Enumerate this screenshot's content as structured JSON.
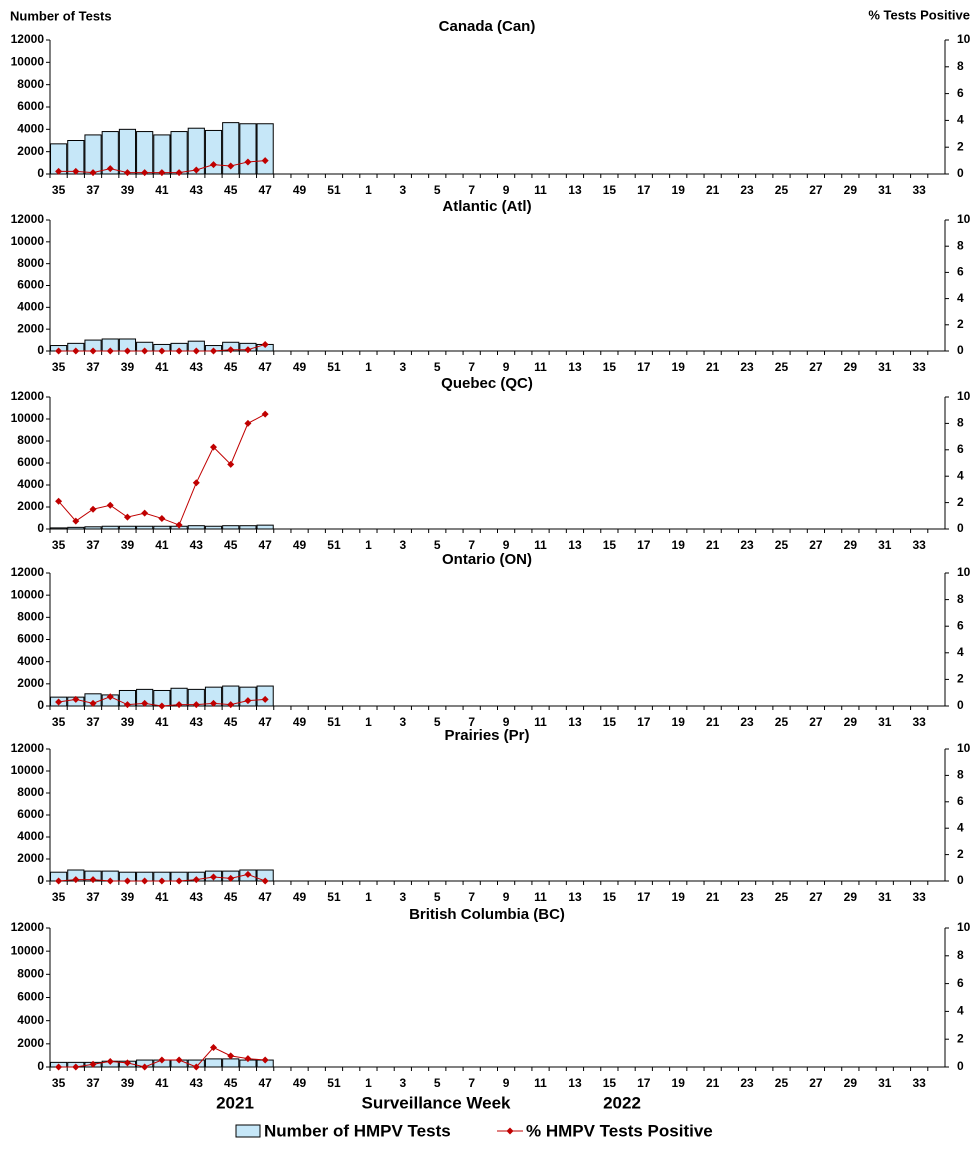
{
  "chart_data": [
    {
      "type": "bar_line",
      "title": "Canada (Can)",
      "ylabel": "Number of Tests",
      "y2label": "% Tests Positive",
      "categories": [
        35,
        null,
        37,
        null,
        39,
        null,
        41,
        null,
        43,
        null,
        45,
        null,
        47,
        null,
        49,
        null,
        51,
        null,
        1,
        null,
        3,
        null,
        5,
        null,
        7,
        null,
        9,
        null,
        11,
        null,
        13,
        null,
        15,
        null,
        17,
        null,
        19,
        null,
        21,
        null,
        23,
        null,
        25,
        null,
        27,
        null,
        29,
        null,
        31,
        null,
        33,
        null
      ],
      "ylim": [
        0,
        12000
      ],
      "yticks": [
        0,
        2000,
        4000,
        6000,
        8000,
        10000,
        12000
      ],
      "y2lim": [
        0,
        10
      ],
      "y2ticks": [
        0,
        2,
        4,
        6,
        8,
        10
      ],
      "series": [
        {
          "color": "#c6e7f8",
          "values": [
            2700,
            3000,
            3500,
            3800,
            4000,
            3800,
            3500,
            3800,
            4100,
            3900,
            4600,
            4500,
            4500,
            null,
            null,
            null,
            null,
            null,
            null,
            null,
            null,
            null,
            null,
            null,
            null,
            null,
            null,
            null,
            null,
            null,
            null,
            null,
            null,
            null,
            null,
            null,
            null,
            null,
            null,
            null,
            null,
            null,
            null,
            null,
            null,
            null,
            null,
            null,
            null,
            null,
            null,
            null
          ]
        },
        {
          "color": "#c00000",
          "axis": "y2",
          "values": [
            0.2,
            0.2,
            0.1,
            0.4,
            0.1,
            0.1,
            0.1,
            0.1,
            0.3,
            0.7,
            0.6,
            0.9,
            1.0,
            null,
            null,
            null,
            null,
            null,
            null,
            null,
            null,
            null,
            null,
            null,
            null,
            null,
            null,
            null,
            null,
            null,
            null,
            null,
            null,
            null,
            null,
            null,
            null,
            null,
            null,
            null,
            null,
            null,
            null,
            null,
            null,
            null,
            null,
            null,
            null,
            null,
            null,
            null
          ]
        }
      ]
    },
    {
      "type": "bar_line",
      "title": "Atlantic (Atl)",
      "categories": [
        35,
        null,
        37,
        null,
        39,
        null,
        41,
        null,
        43,
        null,
        45,
        null,
        47,
        null,
        49,
        null,
        51,
        null,
        1,
        null,
        3,
        null,
        5,
        null,
        7,
        null,
        9,
        null,
        11,
        null,
        13,
        null,
        15,
        null,
        17,
        null,
        19,
        null,
        21,
        null,
        23,
        null,
        25,
        null,
        27,
        null,
        29,
        null,
        31,
        null,
        33,
        null
      ],
      "ylim": [
        0,
        12000
      ],
      "yticks": [
        0,
        2000,
        4000,
        6000,
        8000,
        10000,
        12000
      ],
      "y2lim": [
        0,
        10
      ],
      "y2ticks": [
        0,
        2,
        4,
        6,
        8,
        10
      ],
      "series": [
        {
          "color": "#c6e7f8",
          "values": [
            500,
            700,
            1000,
            1100,
            1100,
            800,
            600,
            700,
            900,
            500,
            800,
            700,
            600,
            null,
            null,
            null,
            null,
            null,
            null,
            null,
            null,
            null,
            null,
            null,
            null,
            null,
            null,
            null,
            null,
            null,
            null,
            null,
            null,
            null,
            null,
            null,
            null,
            null,
            null,
            null,
            null,
            null,
            null,
            null,
            null,
            null,
            null,
            null,
            null,
            null,
            null,
            null
          ]
        },
        {
          "color": "#c00000",
          "axis": "y2",
          "values": [
            0,
            0,
            0,
            0,
            0,
            0,
            0,
            0,
            0,
            0,
            0.1,
            0.1,
            0.5,
            null,
            null,
            null,
            null,
            null,
            null,
            null,
            null,
            null,
            null,
            null,
            null,
            null,
            null,
            null,
            null,
            null,
            null,
            null,
            null,
            null,
            null,
            null,
            null,
            null,
            null,
            null,
            null,
            null,
            null,
            null,
            null,
            null,
            null,
            null,
            null,
            null,
            null,
            null
          ]
        }
      ]
    },
    {
      "type": "bar_line",
      "title": "Quebec (QC)",
      "categories": [
        35,
        null,
        37,
        null,
        39,
        null,
        41,
        null,
        43,
        null,
        45,
        null,
        47,
        null,
        49,
        null,
        51,
        null,
        1,
        null,
        3,
        null,
        5,
        null,
        7,
        null,
        9,
        null,
        11,
        null,
        13,
        null,
        15,
        null,
        17,
        null,
        19,
        null,
        21,
        null,
        23,
        null,
        25,
        null,
        27,
        null,
        29,
        null,
        31,
        null,
        33,
        null
      ],
      "ylim": [
        0,
        12000
      ],
      "yticks": [
        0,
        2000,
        4000,
        6000,
        8000,
        10000,
        12000
      ],
      "y2lim": [
        0,
        10
      ],
      "y2ticks": [
        0,
        2,
        4,
        6,
        8,
        10
      ],
      "series": [
        {
          "color": "#c6e7f8",
          "values": [
            100,
            150,
            200,
            250,
            250,
            250,
            250,
            250,
            300,
            250,
            300,
            300,
            350,
            null,
            null,
            null,
            null,
            null,
            null,
            null,
            null,
            null,
            null,
            null,
            null,
            null,
            null,
            null,
            null,
            null,
            null,
            null,
            null,
            null,
            null,
            null,
            null,
            null,
            null,
            null,
            null,
            null,
            null,
            null,
            null,
            null,
            null,
            null,
            null,
            null,
            null,
            null
          ]
        },
        {
          "color": "#c00000",
          "axis": "y2",
          "values": [
            2.1,
            0.6,
            1.5,
            1.8,
            0.9,
            1.2,
            0.8,
            0.3,
            3.5,
            6.2,
            4.9,
            8.0,
            8.7,
            null,
            null,
            null,
            null,
            null,
            null,
            null,
            null,
            null,
            null,
            null,
            null,
            null,
            null,
            null,
            null,
            null,
            null,
            null,
            null,
            null,
            null,
            null,
            null,
            null,
            null,
            null,
            null,
            null,
            null,
            null,
            null,
            null,
            null,
            null,
            null,
            null,
            null,
            null
          ]
        }
      ]
    },
    {
      "type": "bar_line",
      "title": "Ontario (ON)",
      "categories": [
        35,
        null,
        37,
        null,
        39,
        null,
        41,
        null,
        43,
        null,
        45,
        null,
        47,
        null,
        49,
        null,
        51,
        null,
        1,
        null,
        3,
        null,
        5,
        null,
        7,
        null,
        9,
        null,
        11,
        null,
        13,
        null,
        15,
        null,
        17,
        null,
        19,
        null,
        21,
        null,
        23,
        null,
        25,
        null,
        27,
        null,
        29,
        null,
        31,
        null,
        33,
        null
      ],
      "ylim": [
        0,
        12000
      ],
      "yticks": [
        0,
        2000,
        4000,
        6000,
        8000,
        10000,
        12000
      ],
      "y2lim": [
        0,
        10
      ],
      "y2ticks": [
        0,
        2,
        4,
        6,
        8,
        10
      ],
      "series": [
        {
          "color": "#c6e7f8",
          "values": [
            800,
            800,
            1100,
            1000,
            1400,
            1500,
            1400,
            1600,
            1500,
            1700,
            1800,
            1700,
            1800,
            null,
            null,
            null,
            null,
            null,
            null,
            null,
            null,
            null,
            null,
            null,
            null,
            null,
            null,
            null,
            null,
            null,
            null,
            null,
            null,
            null,
            null,
            null,
            null,
            null,
            null,
            null,
            null,
            null,
            null,
            null,
            null,
            null,
            null,
            null,
            null,
            null,
            null,
            null
          ]
        },
        {
          "color": "#c00000",
          "axis": "y2",
          "values": [
            0.3,
            0.5,
            0.2,
            0.7,
            0.1,
            0.2,
            0,
            0.1,
            0.1,
            0.2,
            0.1,
            0.4,
            0.5,
            null,
            null,
            null,
            null,
            null,
            null,
            null,
            null,
            null,
            null,
            null,
            null,
            null,
            null,
            null,
            null,
            null,
            null,
            null,
            null,
            null,
            null,
            null,
            null,
            null,
            null,
            null,
            null,
            null,
            null,
            null,
            null,
            null,
            null,
            null,
            null,
            null,
            null,
            null
          ]
        }
      ]
    },
    {
      "type": "bar_line",
      "title": "Prairies (Pr)",
      "categories": [
        35,
        null,
        37,
        null,
        39,
        null,
        41,
        null,
        43,
        null,
        45,
        null,
        47,
        null,
        49,
        null,
        51,
        null,
        1,
        null,
        3,
        null,
        5,
        null,
        7,
        null,
        9,
        null,
        11,
        null,
        13,
        null,
        15,
        null,
        17,
        null,
        19,
        null,
        21,
        null,
        23,
        null,
        25,
        null,
        27,
        null,
        29,
        null,
        31,
        null,
        33,
        null
      ],
      "ylim": [
        0,
        12000
      ],
      "yticks": [
        0,
        2000,
        4000,
        6000,
        8000,
        10000,
        12000
      ],
      "y2lim": [
        0,
        10
      ],
      "y2ticks": [
        0,
        2,
        4,
        6,
        8,
        10
      ],
      "series": [
        {
          "color": "#c6e7f8",
          "values": [
            800,
            1000,
            900,
            900,
            800,
            800,
            800,
            800,
            800,
            900,
            900,
            1000,
            1000,
            null,
            null,
            null,
            null,
            null,
            null,
            null,
            null,
            null,
            null,
            null,
            null,
            null,
            null,
            null,
            null,
            null,
            null,
            null,
            null,
            null,
            null,
            null,
            null,
            null,
            null,
            null,
            null,
            null,
            null,
            null,
            null,
            null,
            null,
            null,
            null,
            null,
            null,
            null
          ]
        },
        {
          "color": "#c00000",
          "axis": "y2",
          "values": [
            0,
            0.1,
            0.1,
            0,
            0,
            0,
            0,
            0,
            0.1,
            0.3,
            0.2,
            0.5,
            0,
            null,
            null,
            null,
            null,
            null,
            null,
            null,
            null,
            null,
            null,
            null,
            null,
            null,
            null,
            null,
            null,
            null,
            null,
            null,
            null,
            null,
            null,
            null,
            null,
            null,
            null,
            null,
            null,
            null,
            null,
            null,
            null,
            null,
            null,
            null,
            null,
            null,
            null,
            null
          ]
        }
      ]
    },
    {
      "type": "bar_line",
      "title": "British Columbia (BC)",
      "xlabel": "Surveillance Week",
      "annotations": [
        "2021",
        "2022"
      ],
      "categories": [
        35,
        null,
        37,
        null,
        39,
        null,
        41,
        null,
        43,
        null,
        45,
        null,
        47,
        null,
        49,
        null,
        51,
        null,
        1,
        null,
        3,
        null,
        5,
        null,
        7,
        null,
        9,
        null,
        11,
        null,
        13,
        null,
        15,
        null,
        17,
        null,
        19,
        null,
        21,
        null,
        23,
        null,
        25,
        null,
        27,
        null,
        29,
        null,
        31,
        null,
        33,
        null
      ],
      "ylim": [
        0,
        12000
      ],
      "yticks": [
        0,
        2000,
        4000,
        6000,
        8000,
        10000,
        12000
      ],
      "y2lim": [
        0,
        10
      ],
      "y2ticks": [
        0,
        2,
        4,
        6,
        8,
        10
      ],
      "series": [
        {
          "name": "Number of HMPV Tests",
          "color": "#c6e7f8",
          "values": [
            400,
            400,
            400,
            500,
            500,
            600,
            600,
            600,
            600,
            700,
            700,
            600,
            600,
            null,
            null,
            null,
            null,
            null,
            null,
            null,
            null,
            null,
            null,
            null,
            null,
            null,
            null,
            null,
            null,
            null,
            null,
            null,
            null,
            null,
            null,
            null,
            null,
            null,
            null,
            null,
            null,
            null,
            null,
            null,
            null,
            null,
            null,
            null,
            null,
            null,
            null,
            null
          ]
        },
        {
          "name": "% HMPV Tests Positive",
          "color": "#c00000",
          "axis": "y2",
          "values": [
            0,
            0,
            0.2,
            0.4,
            0.3,
            0,
            0.5,
            0.5,
            0,
            1.4,
            0.8,
            0.6,
            0.5,
            null,
            null,
            null,
            null,
            null,
            null,
            null,
            null,
            null,
            null,
            null,
            null,
            null,
            null,
            null,
            null,
            null,
            null,
            null,
            null,
            null,
            null,
            null,
            null,
            null,
            null,
            null,
            null,
            null,
            null,
            null,
            null,
            null,
            null,
            null,
            null,
            null,
            null,
            null
          ]
        }
      ]
    }
  ]
}
